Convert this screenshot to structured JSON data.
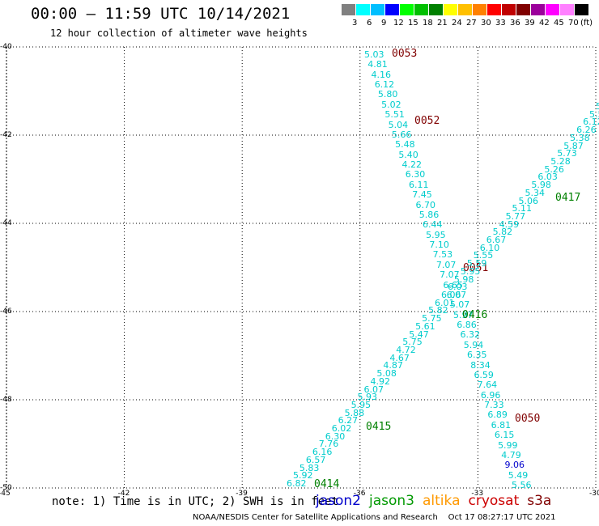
{
  "header": {
    "title": "00:00 — 11:59 UTC 10/14/2021",
    "subtitle": "12 hour collection of altimeter wave heights"
  },
  "legend": {
    "colors": [
      "#808080",
      "#00ffff",
      "#00bfff",
      "#0000ff",
      "#00ff00",
      "#00c000",
      "#008000",
      "#ffff00",
      "#ffc000",
      "#ff8000",
      "#ff0000",
      "#c00000",
      "#800000",
      "#9b009b",
      "#ff00ff",
      "#ff80ff",
      "#000000"
    ],
    "labels": [
      "3",
      "6",
      "9",
      "12",
      "15",
      "18",
      "21",
      "24",
      "27",
      "30",
      "33",
      "36",
      "39",
      "42",
      "45",
      "70",
      "(ft)"
    ]
  },
  "axes": {
    "lon_ticks": [
      "-45",
      "-42",
      "-39",
      "-36",
      "-33",
      "-30"
    ],
    "lat_ticks": [
      "-40",
      "-42",
      "-44",
      "-46",
      "-48",
      "-50"
    ]
  },
  "tracks": [
    {
      "id": "descending",
      "values": [
        "5.03",
        "4.81",
        "4.16",
        "6.12",
        "5.80",
        "5.02",
        "5.51",
        "5.04",
        "5.66",
        "5.48",
        "5.40",
        "4.22",
        "6.30",
        "6.11",
        "7.45",
        "6.70",
        "5.86",
        "6.44",
        "5.95",
        "7.10",
        "7.53",
        "7.07",
        "7.07",
        "6.65",
        "6.07",
        "5.07",
        "5.97",
        "6.86",
        "6.32",
        "5.94",
        "6.35",
        "8.34",
        "6.59",
        "7.64",
        "6.96",
        "7.33",
        "6.89",
        "6.81",
        "6.15",
        "5.99",
        "4.79",
        "9.06",
        "5.49",
        "5.56"
      ],
      "times": [
        {
          "label": "0053",
          "color": "#800000"
        },
        {
          "label": "0052",
          "color": "#800000"
        },
        {
          "label": "0051",
          "color": "#800000"
        },
        {
          "label": "0050",
          "color": "#800000"
        }
      ]
    },
    {
      "id": "ascending",
      "values": [
        "6.82",
        "5.92",
        "5.83",
        "6.57",
        "6.16",
        "7.76",
        "6.30",
        "6.02",
        "6.27",
        "5.88",
        "5.95",
        "5.93",
        "6.07",
        "4.92",
        "5.08",
        "4.87",
        "4.67",
        "4.72",
        "5.75",
        "5.47",
        "5.61",
        "5.75",
        "5.82",
        "6.01",
        "6.06",
        "6.03",
        "5.98",
        "5.95",
        "5.59",
        "5.55",
        "6.10",
        "6.67",
        "5.82",
        "4.59",
        "5.77",
        "5.11",
        "5.06",
        "5.34",
        "5.98",
        "6.03",
        "5.26",
        "5.28",
        "5.73",
        "5.87",
        "5.38",
        "6.26",
        "6.12",
        "5.5",
        "5."
      ],
      "times": [
        {
          "label": "0414",
          "color": "#008000"
        },
        {
          "label": "0415",
          "color": "#008000"
        },
        {
          "label": "0416",
          "color": "#008000"
        },
        {
          "label": "0417",
          "color": "#008000"
        }
      ]
    }
  ],
  "note": "note: 1) Time is in UTC; 2) SWH is in feet",
  "satellites": [
    {
      "name": "jason2",
      "color": "#0000cc"
    },
    {
      "name": "jason3",
      "color": "#009900"
    },
    {
      "name": "altika",
      "color": "#ff9900"
    },
    {
      "name": "cryosat",
      "color": "#cc0000"
    },
    {
      "name": "s3a",
      "color": "#800000"
    }
  ],
  "credit": "NOAA/NESDIS Center for Satellite Applications and Research    Oct 17 08:27:17 UTC 2021"
}
